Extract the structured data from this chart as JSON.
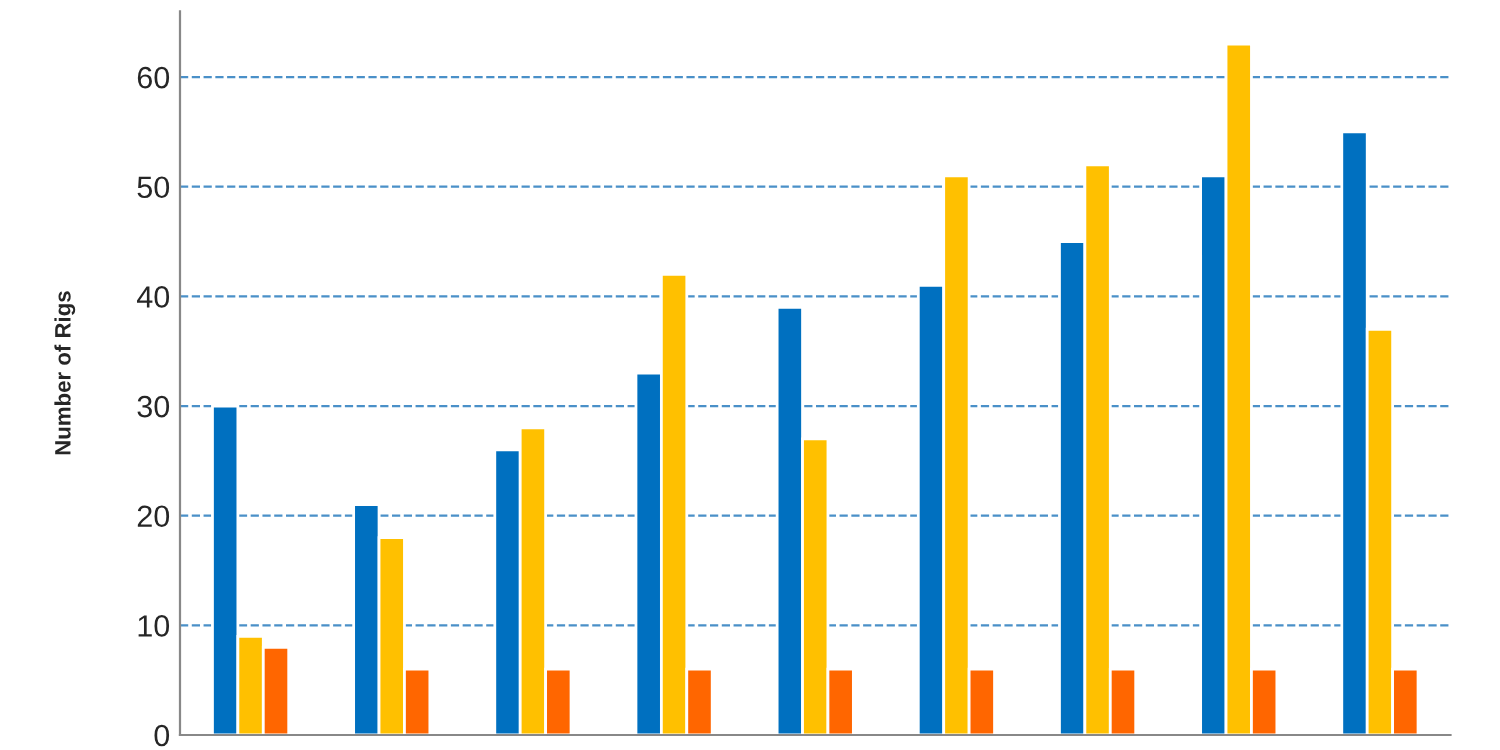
{
  "chart_data": {
    "type": "bar",
    "ylabel": "Number of Rigs",
    "categories": [
      null,
      null,
      null,
      null,
      null,
      null,
      null,
      null,
      null
    ],
    "series": [
      {
        "color": "#0070c0",
        "values": [
          30,
          21,
          26,
          33,
          39,
          41,
          45,
          51,
          55
        ]
      },
      {
        "color": "#ffc000",
        "values": [
          9,
          18,
          28,
          42,
          27,
          51,
          52,
          63,
          37
        ]
      },
      {
        "color": "#ff6600",
        "values": [
          8,
          6,
          6,
          6,
          6,
          6,
          6,
          6,
          6
        ]
      }
    ],
    "ylim": [
      0,
      66
    ],
    "yticks": [
      0,
      10,
      20,
      30,
      40,
      50,
      60
    ],
    "grid": "y",
    "legend": false
  }
}
